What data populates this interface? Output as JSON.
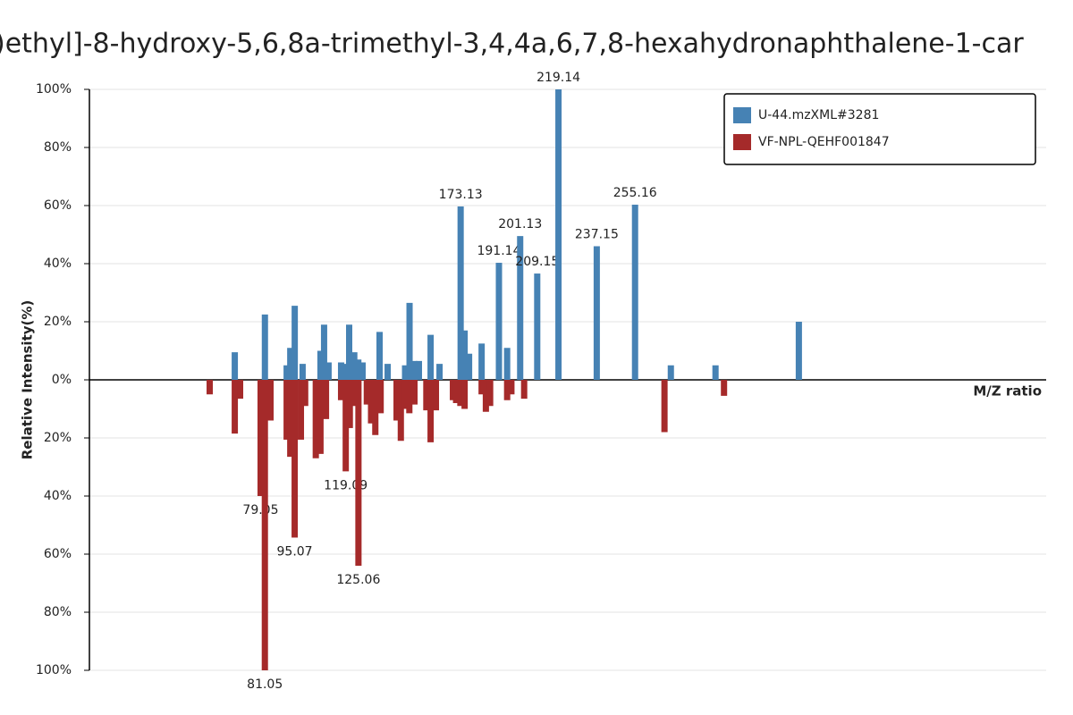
{
  "chart_data": {
    "type": "mirror-bar",
    "title": ")ethyl]-8-hydroxy-5,6,8a-trimethyl-3,4,4a,6,7,8-hexahydronaphthalene-1-car",
    "x_label": "M/Z ratio",
    "y_label": "Relative Intensity(%)",
    "xlim": [
      0,
      450
    ],
    "ylim": [
      -100,
      100
    ],
    "yticks": [
      {
        "value": -100,
        "label": "100%"
      },
      {
        "value": -80,
        "label": "80%"
      },
      {
        "value": -60,
        "label": "60%"
      },
      {
        "value": -40,
        "label": "40%"
      },
      {
        "value": -20,
        "label": "20%"
      },
      {
        "value": 0,
        "label": "0%"
      },
      {
        "value": 20,
        "label": "20%"
      },
      {
        "value": 40,
        "label": "40%"
      },
      {
        "value": 60,
        "label": "60%"
      },
      {
        "value": 80,
        "label": "80%"
      },
      {
        "value": 100,
        "label": "100%"
      }
    ],
    "grid": true,
    "legend": "top-right",
    "series": [
      {
        "name": "U-44.mzXML#3281",
        "color": "#4682b4",
        "x": [
          66.9,
          81.07,
          91.3,
          93.0,
          95.1,
          98.8,
          107.2,
          108.9,
          111.0,
          116.9,
          119.0,
          120.7,
          123.1,
          125.0,
          127.0,
          135.0,
          138.8,
          147.0,
          149.1,
          151.3,
          153.5,
          159.0,
          163.2,
          173.13,
          175.0,
          177.1,
          183.0,
          191.14,
          195.0,
          201.13,
          209.15,
          219.14,
          237.15,
          255.16,
          272.0,
          293.0,
          332.2
        ],
        "values": [
          9.5,
          22.5,
          5,
          11,
          25.5,
          5.5,
          10,
          19,
          6,
          6,
          5.5,
          19,
          9.5,
          7,
          6,
          16.5,
          5.5,
          5,
          26.5,
          6.5,
          6.5,
          15.5,
          5.5,
          59.7,
          17,
          9,
          12.5,
          40.3,
          11,
          49.5,
          36.6,
          100,
          46,
          60.3,
          5,
          5,
          20
        ],
        "peak_labels": [
          null,
          null,
          null,
          null,
          null,
          null,
          null,
          null,
          null,
          null,
          null,
          null,
          null,
          null,
          null,
          null,
          null,
          null,
          null,
          null,
          null,
          null,
          null,
          "173.13",
          null,
          null,
          null,
          "191.14",
          null,
          "201.13",
          "209.15",
          "219.14",
          "237.15",
          "255.16",
          null,
          null,
          null
        ]
      },
      {
        "name": "VF-NPL-QEHF001847",
        "color": "#a52a2a",
        "x": [
          55.1,
          66.9,
          69.4,
          79.05,
          81.05,
          83.7,
          91.3,
          93.0,
          95.07,
          98.0,
          100.0,
          105.0,
          107.2,
          109.8,
          116.9,
          119.09,
          121.0,
          123.0,
          125.06,
          129.0,
          131.0,
          133.0,
          135.5,
          143.0,
          145.0,
          147.0,
          149.0,
          151.4,
          157.0,
          159.0,
          161.5,
          169.5,
          171.0,
          173.0,
          175.0,
          183.0,
          185.0,
          187.0,
          195.0,
          197.0,
          203.0,
          269.0,
          297.0
        ],
        "values": [
          -5,
          -18.5,
          -6.5,
          -40,
          -100,
          -14,
          -20.6,
          -26.5,
          -54.3,
          -20.6,
          -9,
          -27,
          -25.5,
          -13.5,
          -7,
          -31.5,
          -16.6,
          -9,
          -64,
          -8.5,
          -15,
          -19,
          -11.5,
          -14,
          -21,
          -10,
          -11.5,
          -8.5,
          -10.5,
          -21.5,
          -10.5,
          -7,
          -8,
          -9,
          -10,
          -5,
          -11,
          -9,
          -7,
          -5,
          -6.5,
          -18,
          -5.5
        ],
        "peak_labels": [
          null,
          null,
          null,
          "79.05",
          "81.05",
          null,
          null,
          null,
          "95.07",
          null,
          null,
          null,
          null,
          null,
          null,
          "119.09",
          null,
          null,
          "125.06",
          null,
          null,
          null,
          null,
          null,
          null,
          null,
          null,
          null,
          null,
          null,
          null,
          null,
          null,
          null,
          null,
          null,
          null,
          null,
          null,
          null,
          null,
          null,
          null
        ]
      }
    ]
  }
}
